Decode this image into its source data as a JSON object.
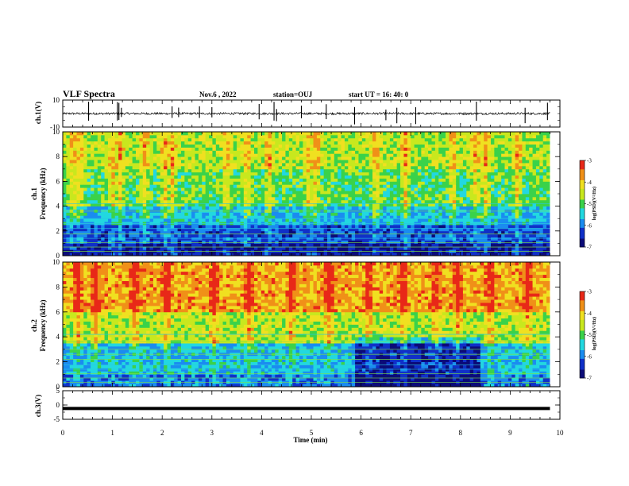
{
  "header": {
    "title": "VLF Spectra",
    "date": "Nov.6 , 2022",
    "station": "station=OUJ",
    "start": "start UT = 16: 40: 0"
  },
  "chart_data": [
    {
      "type": "line",
      "panel": "waveform-ch1",
      "ylabel": "ch.1(V)",
      "ylim": [
        -10,
        10
      ],
      "yticks": [
        "10",
        "-10"
      ],
      "xlim": [
        0,
        10
      ],
      "description_of_series": "noisy baseline near 0 V with sporadic spikes",
      "baseline_v": 0,
      "spike_times_min": [
        0.52,
        1.1,
        1.13,
        1.18,
        2.2,
        2.33,
        2.75,
        3.0,
        3.95,
        4.25,
        4.3,
        4.8,
        5.3,
        5.87,
        6.5,
        6.72,
        7.1,
        8.32,
        9.3,
        9.75
      ],
      "color": "#000000"
    },
    {
      "type": "heatmap",
      "panel": "spectrogram-ch1",
      "ylabel": "ch.1\nFrequency (kHz)",
      "ylabel_line1": "ch.1",
      "ylabel_line2": "Frequency (kHz)",
      "ylim": [
        0,
        10
      ],
      "yticks": [
        "0",
        "2",
        "4",
        "6",
        "8",
        "10"
      ],
      "xlim": [
        0,
        9.8
      ],
      "colorbar": {
        "label": "log(PSD)(V²/Hz)",
        "range": [
          -7,
          -3
        ],
        "ticks": [
          "-3",
          "-4",
          "-5",
          "-6",
          "-7"
        ]
      },
      "dominant_levels_by_freq_khz": [
        {
          "band": [
            0,
            1
          ],
          "log_psd": -6.6
        },
        {
          "band": [
            1,
            2.5
          ],
          "log_psd": -6.2
        },
        {
          "band": [
            2.5,
            4
          ],
          "log_psd": -5.6
        },
        {
          "band": [
            4,
            7
          ],
          "log_psd": -5.0
        },
        {
          "band": [
            7,
            10
          ],
          "log_psd": -4.6
        }
      ],
      "hiss_bursts_min": [
        0.2,
        0.35,
        1.0,
        1.15,
        1.65,
        2.05,
        2.2,
        3.3,
        3.7,
        4.15,
        4.95,
        5.1,
        6.3,
        6.9,
        7.85,
        8.3,
        8.5,
        9.15
      ]
    },
    {
      "type": "heatmap",
      "panel": "spectrogram-ch2",
      "ylabel": "ch.2\nFrequency (kHz)",
      "ylabel_line1": "ch.2",
      "ylabel_line2": "Frequency (kHz)",
      "ylim": [
        0,
        10
      ],
      "yticks": [
        "0",
        "2",
        "4",
        "6",
        "8",
        "10"
      ],
      "xlim": [
        0,
        9.8
      ],
      "colorbar": {
        "label": "log(PSD)(V²/Hz)",
        "range": [
          -7,
          -3
        ],
        "ticks": [
          "-3",
          "-4",
          "-5",
          "-6",
          "-7"
        ]
      },
      "dominant_levels_by_freq_khz": [
        {
          "band": [
            0,
            1
          ],
          "log_psd": -6.0
        },
        {
          "band": [
            1,
            3.5
          ],
          "log_psd": -5.6
        },
        {
          "band": [
            3.5,
            6
          ],
          "log_psd": -4.6
        },
        {
          "band": [
            6,
            10
          ],
          "log_psd": -3.8
        }
      ],
      "quiet_interval_min": [
        5.85,
        8.4
      ],
      "hiss_bursts_min": [
        0.3,
        0.65,
        1.45,
        2.1,
        3.05,
        3.75,
        4.6,
        5.35,
        6.15,
        6.85,
        7.5,
        7.95,
        8.6,
        9.35
      ]
    },
    {
      "type": "line",
      "panel": "waveform-ch3",
      "ylabel": "ch.3(V)",
      "ylim": [
        -5,
        5
      ],
      "yticks": [
        "5",
        "0",
        "-5"
      ],
      "xlim": [
        0,
        10
      ],
      "constant_value_v": -1.2,
      "color": "#000000"
    }
  ],
  "xaxis": {
    "label": "Time (min)",
    "ticks": [
      "0",
      "1",
      "2",
      "3",
      "4",
      "5",
      "6",
      "7",
      "8",
      "9",
      "10"
    ]
  },
  "colormap": [
    "#0b0b78",
    "#1030c8",
    "#1a8cf0",
    "#22d8e0",
    "#3ad24a",
    "#c8e81e",
    "#f0e020",
    "#f09018",
    "#e82818",
    "#ffffff"
  ]
}
